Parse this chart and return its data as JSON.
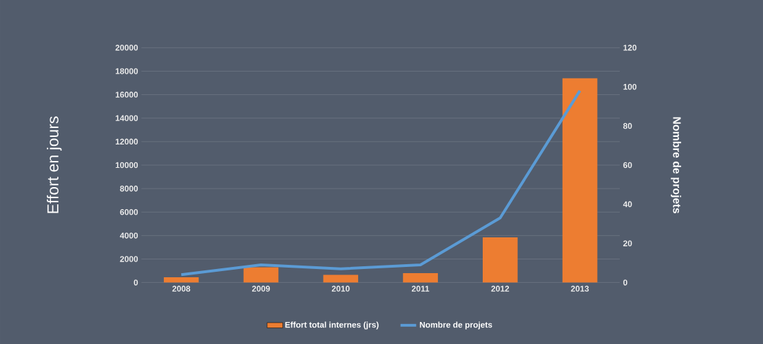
{
  "chart_data": {
    "type": "bar",
    "ylabel": "Effort en jours",
    "y2label": "Nombre de projets",
    "categories": [
      "2008",
      "2009",
      "2010",
      "2011",
      "2012",
      "2013"
    ],
    "series": [
      {
        "name": "Effort total internes (jrs)",
        "color": "#ed7d31",
        "values": [
          450,
          1300,
          650,
          800,
          3850,
          17400
        ]
      },
      {
        "name": "Nombre de projets",
        "type": "line",
        "axis": "y2",
        "color": "#5b9bd5",
        "values": [
          4,
          9,
          7,
          9,
          33,
          98
        ]
      }
    ],
    "ylim": [
      0,
      20000
    ],
    "yticks": [
      0,
      2000,
      4000,
      6000,
      8000,
      10000,
      12000,
      14000,
      16000,
      18000,
      20000
    ],
    "y2lim": [
      0,
      120
    ],
    "y2ticks": [
      0,
      20,
      40,
      60,
      80,
      100,
      120
    ],
    "grid": "y",
    "legend": "bottom",
    "marker": "none"
  }
}
